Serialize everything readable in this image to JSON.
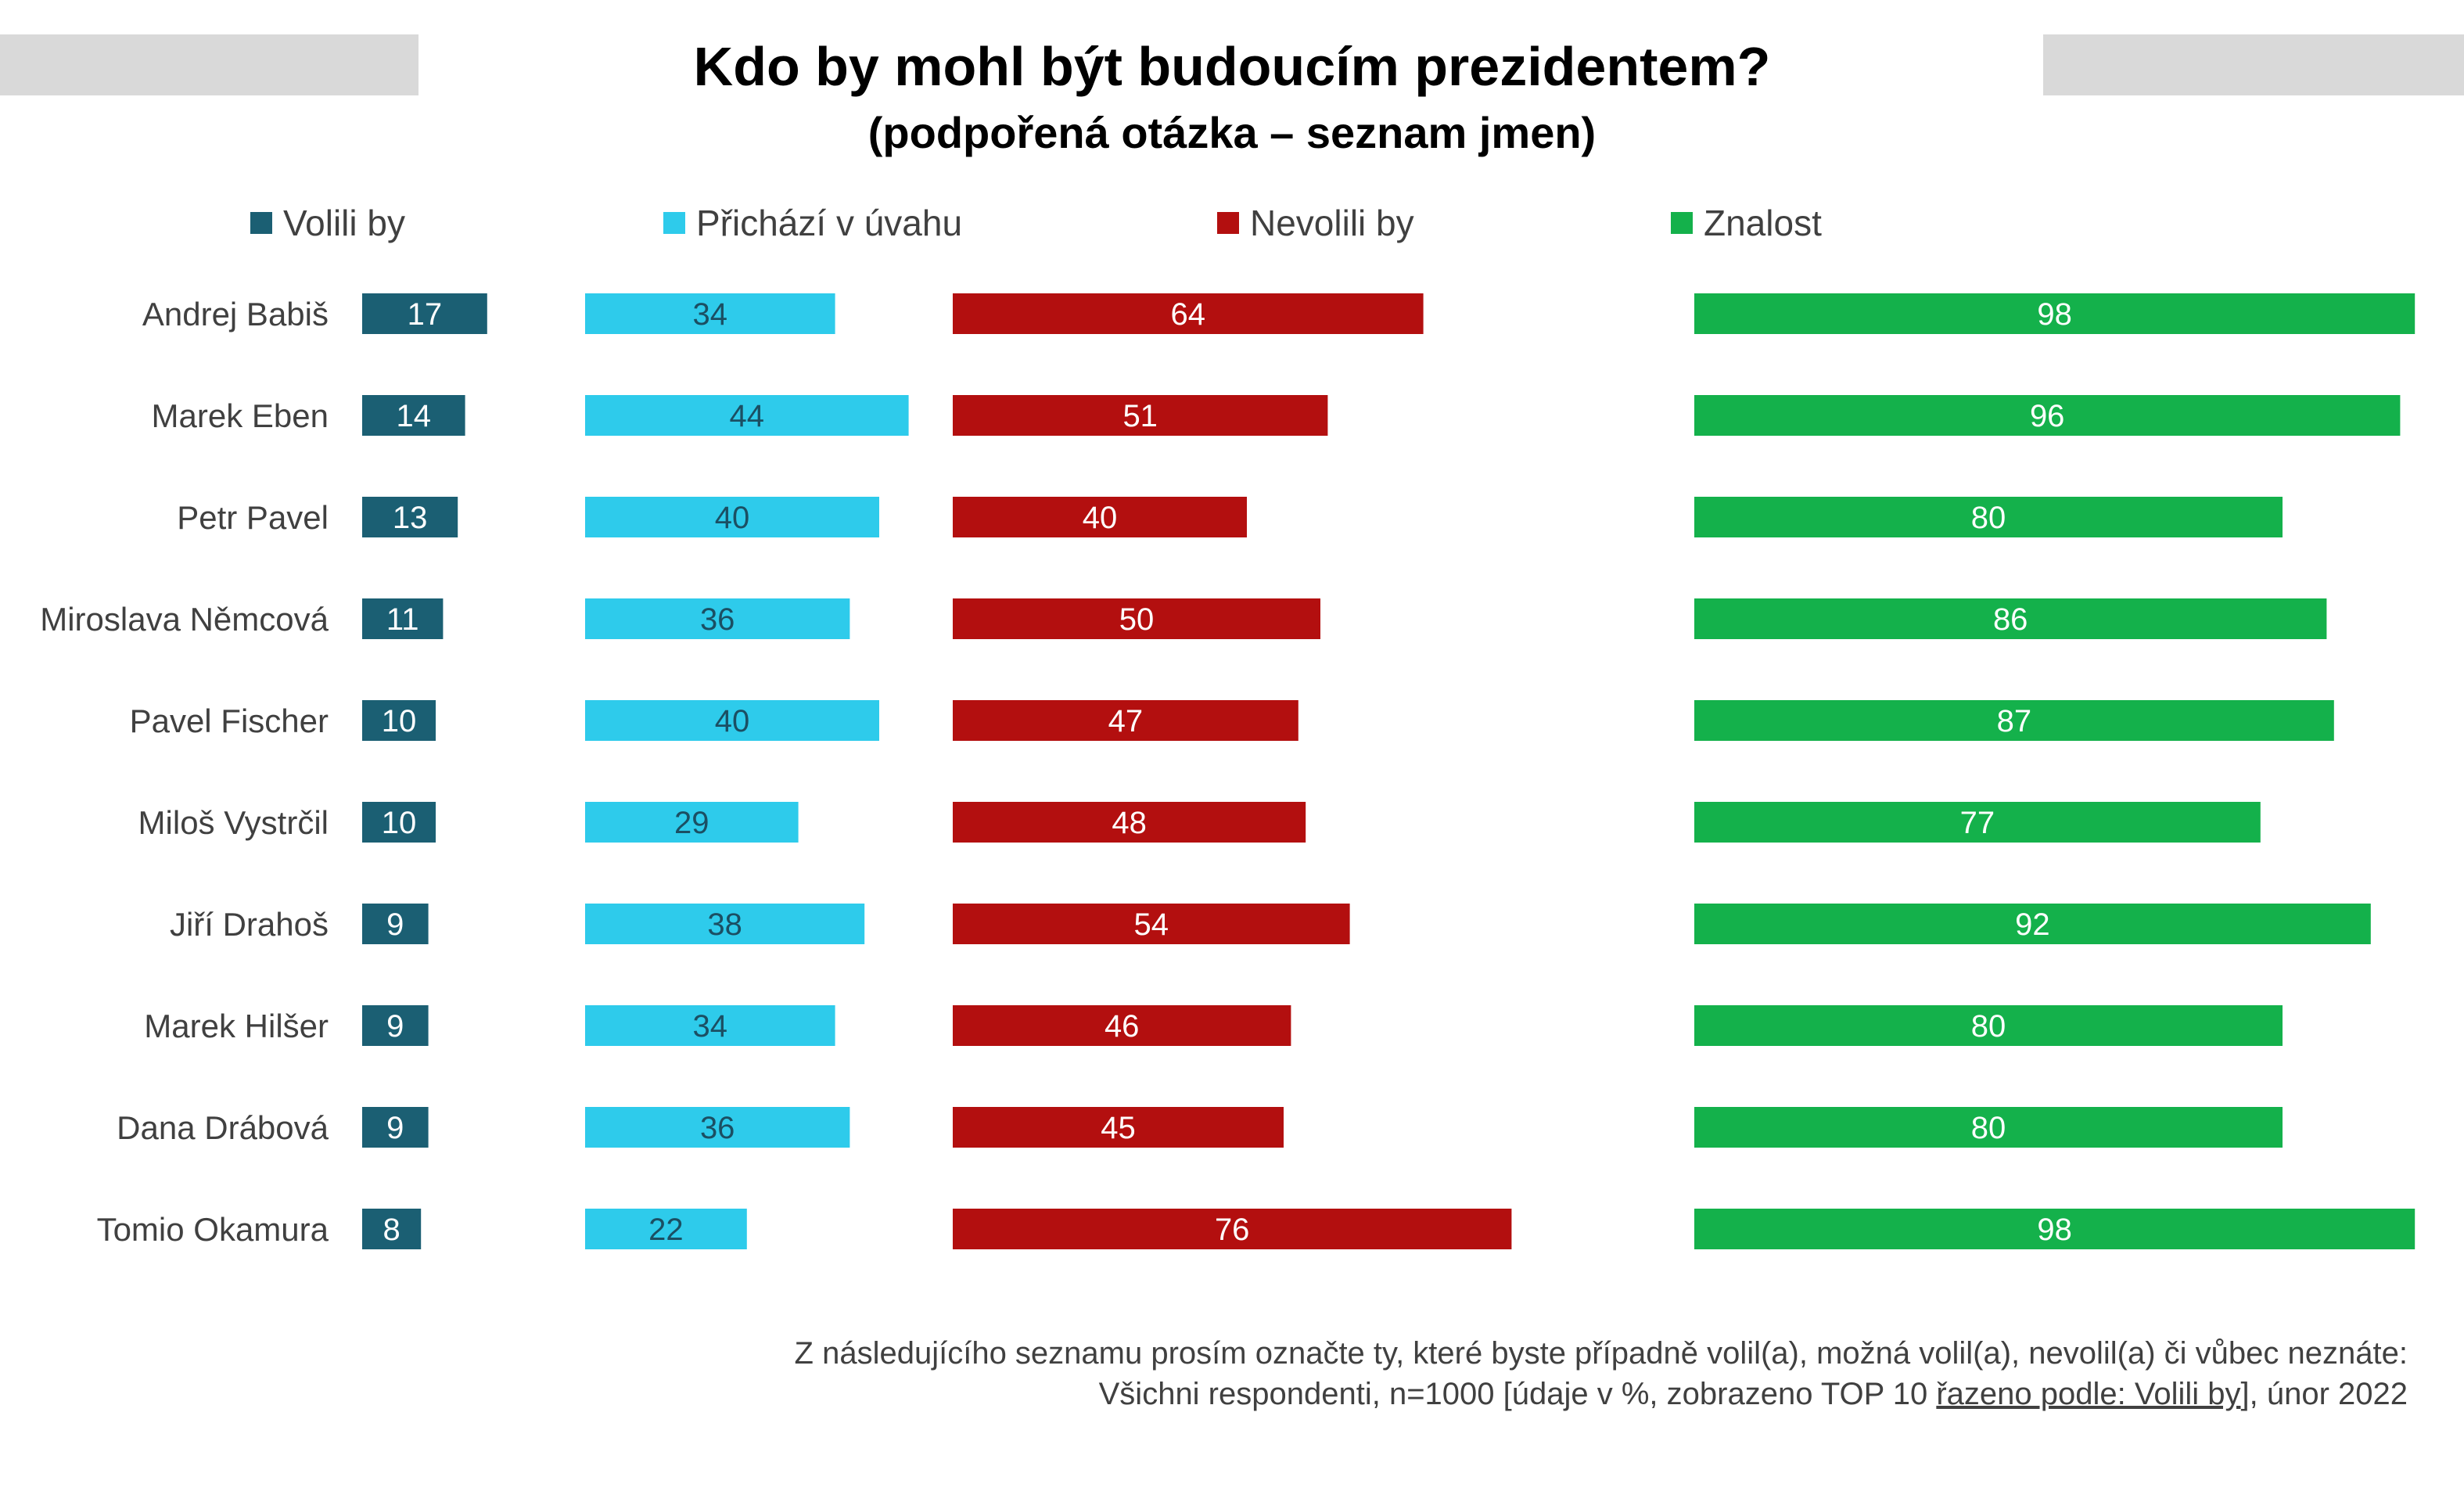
{
  "title": "Kdo by mohl být budoucím prezidentem?",
  "subtitle": "(podpořená otázka – seznam jmen)",
  "footnote": {
    "line1": "Z následujícího seznamu prosím označte ty, které byste případně volil(a), možná volil(a), nevolil(a) či vůbec neznáte:",
    "line2_a": "Všichni respondenti, n=1000 [údaje v %, zobrazeno TOP 10 ",
    "line2_b": "řazeno podle: Volili by",
    "line2_c": "], únor 2022"
  },
  "chart_data": {
    "type": "bar",
    "orientation": "horizontal",
    "legend_position": "top",
    "grid": false,
    "categories": [
      "Andrej Babiš",
      "Marek Eben",
      "Petr Pavel",
      "Miroslava Němcová",
      "Pavel Fischer",
      "Miloš Vystrčil",
      "Jiří Drahoš",
      "Marek Hilšer",
      "Dana Drábová",
      "Tomio Okamura"
    ],
    "series": [
      {
        "name": "Volili by",
        "color": "#1b5f73",
        "values": [
          17,
          14,
          13,
          11,
          10,
          10,
          9,
          9,
          9,
          8
        ]
      },
      {
        "name": "Přichází v úvahu",
        "color": "#2ecbeb",
        "values": [
          34,
          44,
          40,
          36,
          40,
          29,
          38,
          34,
          36,
          22
        ]
      },
      {
        "name": "Nevolili by",
        "color": "#b30f0f",
        "values": [
          64,
          51,
          40,
          50,
          47,
          48,
          54,
          46,
          45,
          76
        ]
      },
      {
        "name": "Znalost",
        "color": "#14b14b",
        "values": [
          98,
          96,
          80,
          86,
          87,
          77,
          92,
          80,
          80,
          98
        ]
      }
    ]
  }
}
